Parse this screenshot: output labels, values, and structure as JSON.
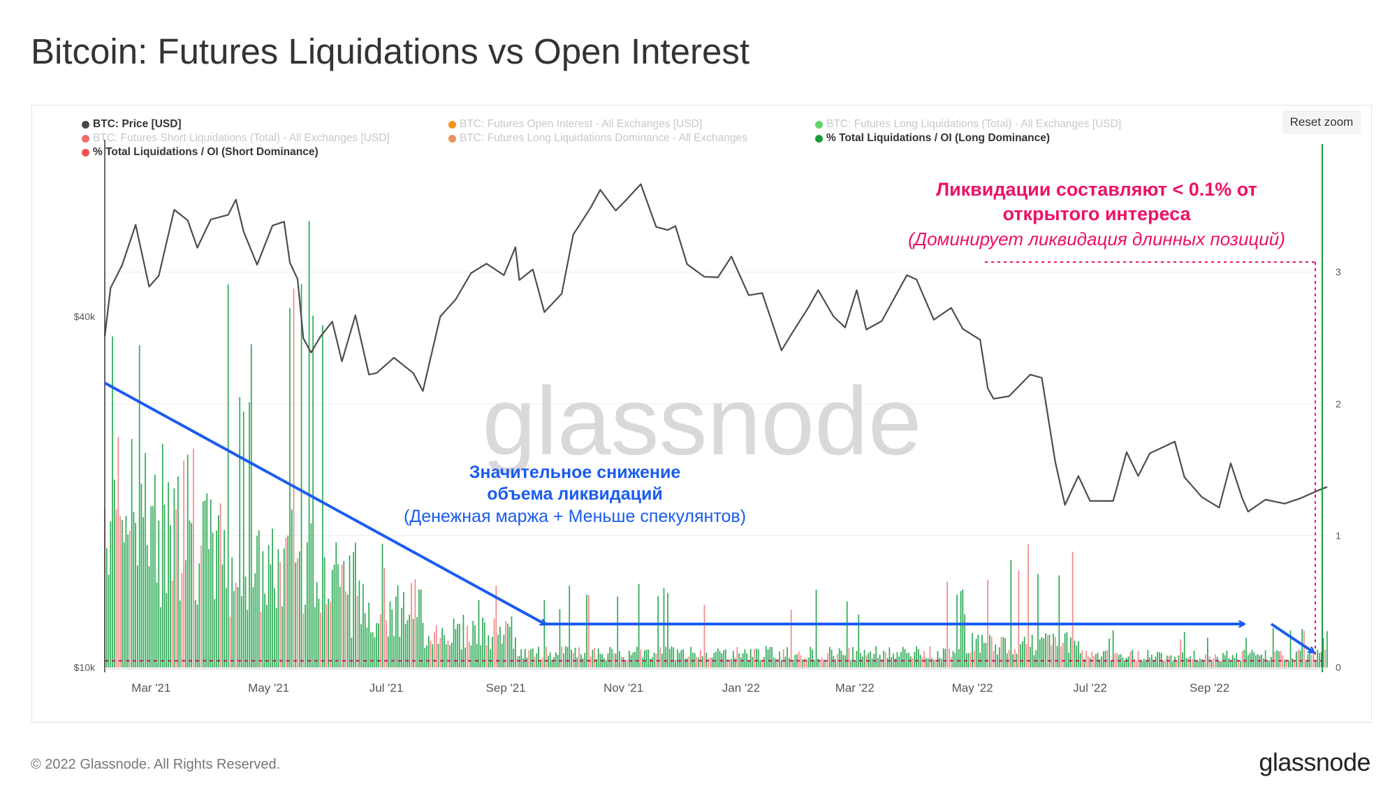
{
  "page": {
    "title": "Bitcoin: Futures Liquidations vs Open Interest",
    "copyright": "© 2022 Glassnode. All Rights Reserved.",
    "logo": "glassnode",
    "watermark": "glassnode",
    "reset_zoom": "Reset zoom"
  },
  "legend": [
    {
      "label": "BTC: Price [USD]",
      "color": "#4a4a4a",
      "active": true
    },
    {
      "label": "BTC: Futures Open Interest - All Exchanges [USD]",
      "color": "#f7931a",
      "active": false
    },
    {
      "label": "BTC: Futures Long Liquidations (Total) - All Exchanges [USD]",
      "color": "#5fd36a",
      "active": false
    },
    {
      "label": "BTC: Futures Short Liquidations (Total) - All Exchanges [USD]",
      "color": "#f26b6b",
      "active": false
    },
    {
      "label": "BTC: Futures Long Liquidations Dominance - All Exchanges",
      "color": "#e8915a",
      "active": false
    },
    {
      "label": "% Total Liquidations / OI (Long Dominance)",
      "color": "#1a9c3e",
      "active": true
    },
    {
      "label": "% Total Liquidations / OI (Short Dominance)",
      "color": "#f25050",
      "active": true
    }
  ],
  "annotations": {
    "down_line1": "Значительное снижение",
    "down_line2": "объема ликвидаций",
    "down_line3": "(Денежная маржа + Меньше спекулянтов)",
    "right_line1": "Ликвидации составляют < 0.1% от",
    "right_line2": "открытого интереса",
    "right_line3": "(Доминирует ликвидация длинных позиций)",
    "blue_color": "#1a5cf0",
    "pink_color": "#ee1166"
  },
  "chart_data": {
    "type": "bar+line",
    "x_ticks": [
      "Mar '21",
      "May '21",
      "Jul '21",
      "Sep '21",
      "Nov '21",
      "Jan '22",
      "Mar '22",
      "May '22",
      "Jul '22",
      "Sep '22"
    ],
    "left_axis": {
      "scale": "log",
      "ticks": [
        "$10k",
        "$40k"
      ]
    },
    "right_axis": {
      "ticks": [
        "0",
        "1",
        "2",
        "3"
      ],
      "range": [
        0,
        4
      ]
    },
    "reference_line": 0.05,
    "series": [
      {
        "name": "BTC: Price [USD]",
        "type": "line",
        "color": "#4a4a4a",
        "points": [
          [
            "2021-02-05",
            37000
          ],
          [
            "2021-02-08",
            44800
          ],
          [
            "2021-02-14",
            49000
          ],
          [
            "2021-02-21",
            57500
          ],
          [
            "2021-02-28",
            45000
          ],
          [
            "2021-03-05",
            47000
          ],
          [
            "2021-03-13",
            61000
          ],
          [
            "2021-03-20",
            58500
          ],
          [
            "2021-03-25",
            52500
          ],
          [
            "2021-04-01",
            58700
          ],
          [
            "2021-04-10",
            59800
          ],
          [
            "2021-04-14",
            63500
          ],
          [
            "2021-04-18",
            56000
          ],
          [
            "2021-04-25",
            49100
          ],
          [
            "2021-05-03",
            57300
          ],
          [
            "2021-05-09",
            58200
          ],
          [
            "2021-05-12",
            49500
          ],
          [
            "2021-05-16",
            46400
          ],
          [
            "2021-05-19",
            36700
          ],
          [
            "2021-05-23",
            34700
          ],
          [
            "2021-05-28",
            37000
          ],
          [
            "2021-06-03",
            39200
          ],
          [
            "2021-06-08",
            33500
          ],
          [
            "2021-06-15",
            40200
          ],
          [
            "2021-06-22",
            31800
          ],
          [
            "2021-06-26",
            32000
          ],
          [
            "2021-07-05",
            34000
          ],
          [
            "2021-07-15",
            32000
          ],
          [
            "2021-07-20",
            29800
          ],
          [
            "2021-07-29",
            40000
          ],
          [
            "2021-08-06",
            42800
          ],
          [
            "2021-08-14",
            47500
          ],
          [
            "2021-08-22",
            49300
          ],
          [
            "2021-08-31",
            47100
          ],
          [
            "2021-09-06",
            52600
          ],
          [
            "2021-09-08",
            46200
          ],
          [
            "2021-09-15",
            48200
          ],
          [
            "2021-09-21",
            40700
          ],
          [
            "2021-09-30",
            43800
          ],
          [
            "2021-10-06",
            55300
          ],
          [
            "2021-10-15",
            61500
          ],
          [
            "2021-10-20",
            66000
          ],
          [
            "2021-10-28",
            60800
          ],
          [
            "2021-11-02",
            63200
          ],
          [
            "2021-11-10",
            67500
          ],
          [
            "2021-11-18",
            57000
          ],
          [
            "2021-11-24",
            56300
          ],
          [
            "2021-11-28",
            57200
          ],
          [
            "2021-12-04",
            49200
          ],
          [
            "2021-12-13",
            46800
          ],
          [
            "2021-12-20",
            46700
          ],
          [
            "2021-12-27",
            50700
          ],
          [
            "2022-01-05",
            43500
          ],
          [
            "2022-01-12",
            43900
          ],
          [
            "2022-01-22",
            35000
          ],
          [
            "2022-01-28",
            37700
          ],
          [
            "2022-02-05",
            41500
          ],
          [
            "2022-02-10",
            44400
          ],
          [
            "2022-02-18",
            40000
          ],
          [
            "2022-02-24",
            38300
          ],
          [
            "2022-03-02",
            44400
          ],
          [
            "2022-03-07",
            38000
          ],
          [
            "2022-03-15",
            39300
          ],
          [
            "2022-03-28",
            47100
          ],
          [
            "2022-04-02",
            46300
          ],
          [
            "2022-04-11",
            39500
          ],
          [
            "2022-04-20",
            41400
          ],
          [
            "2022-04-26",
            38100
          ],
          [
            "2022-05-05",
            36500
          ],
          [
            "2022-05-09",
            30100
          ],
          [
            "2022-05-12",
            28900
          ],
          [
            "2022-05-20",
            29200
          ],
          [
            "2022-05-31",
            31800
          ],
          [
            "2022-06-06",
            31400
          ],
          [
            "2022-06-13",
            22500
          ],
          [
            "2022-06-18",
            19000
          ],
          [
            "2022-06-25",
            21300
          ],
          [
            "2022-07-01",
            19300
          ],
          [
            "2022-07-13",
            19300
          ],
          [
            "2022-07-20",
            23400
          ],
          [
            "2022-07-26",
            21300
          ],
          [
            "2022-08-01",
            23300
          ],
          [
            "2022-08-14",
            24400
          ],
          [
            "2022-08-19",
            21200
          ],
          [
            "2022-08-28",
            19600
          ],
          [
            "2022-09-06",
            18800
          ],
          [
            "2022-09-12",
            22400
          ],
          [
            "2022-09-18",
            19500
          ],
          [
            "2022-09-21",
            18500
          ],
          [
            "2022-09-30",
            19400
          ],
          [
            "2022-10-10",
            19100
          ],
          [
            "2022-10-18",
            19500
          ],
          [
            "2022-10-27",
            20100
          ],
          [
            "2022-11-01",
            20400
          ]
        ]
      },
      {
        "name": "% Total Liquidations / OI (Long Dominance)",
        "type": "bar",
        "color": "#2eaa55",
        "values_by_period": [
          {
            "from": "2021-02-05",
            "to": "2021-03-01",
            "level": 1.35,
            "peak": 2.9
          },
          {
            "from": "2021-03-01",
            "to": "2021-04-10",
            "level": 1.0,
            "peak": 1.7
          },
          {
            "from": "2021-04-10",
            "to": "2021-05-12",
            "level": 0.8,
            "peak": 2.95
          },
          {
            "from": "2021-05-12",
            "to": "2021-06-10",
            "level": 0.9,
            "peak": 3.6
          },
          {
            "from": "2021-06-10",
            "to": "2021-07-20",
            "level": 0.5,
            "peak": 1.0
          },
          {
            "from": "2021-07-20",
            "to": "2021-09-07",
            "level": 0.3,
            "peak": 0.65
          },
          {
            "from": "2021-09-07",
            "to": "2022-05-01",
            "level": 0.12,
            "peak": 0.65
          },
          {
            "from": "2022-05-01",
            "to": "2022-06-25",
            "level": 0.2,
            "peak": 1.0
          },
          {
            "from": "2022-06-25",
            "to": "2022-11-01",
            "level": 0.1,
            "peak": 0.3
          }
        ]
      },
      {
        "name": "% Total Liquidations / OI (Short Dominance)",
        "type": "bar",
        "color": "#f08a8a",
        "note": "interleaved with long-dominance bars"
      }
    ]
  }
}
